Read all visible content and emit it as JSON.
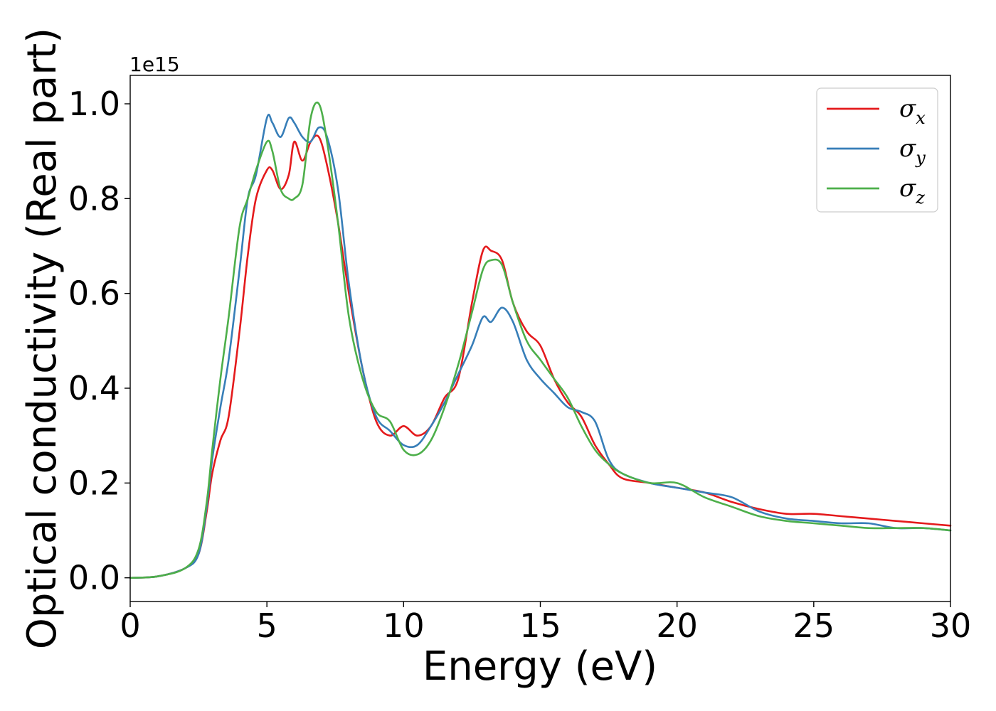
{
  "chart_data": {
    "type": "line",
    "title": "",
    "xlabel": "Energy (eV)",
    "ylabel": "Optical conductivity (Real part)",
    "y_offset_text": "1e15",
    "y_scale_factor": 1000000000000000.0,
    "xlim": [
      0,
      30
    ],
    "ylim": [
      -0.05,
      1.06
    ],
    "x_ticks": [
      0,
      5,
      10,
      15,
      20,
      25,
      30
    ],
    "x_tick_labels": [
      "0",
      "5",
      "10",
      "15",
      "20",
      "25",
      "30"
    ],
    "y_ticks": [
      0.0,
      0.2,
      0.4,
      0.6,
      0.8,
      1.0
    ],
    "y_tick_labels": [
      "0.0",
      "0.2",
      "0.4",
      "0.6",
      "0.8",
      "1.0"
    ],
    "grid": false,
    "legend_position": "top-right",
    "series": [
      {
        "name": "σx",
        "legend_symbol": "σ",
        "legend_subscript": "x",
        "color": "#e41a1c",
        "x": [
          0,
          1,
          2,
          2.5,
          2.8,
          3.0,
          3.3,
          3.6,
          4.0,
          4.3,
          4.6,
          5.0,
          5.2,
          5.5,
          5.8,
          6.0,
          6.3,
          6.6,
          6.9,
          7.2,
          7.6,
          8.0,
          8.5,
          9.0,
          9.5,
          10.0,
          10.5,
          11.0,
          11.5,
          12.0,
          12.5,
          12.9,
          13.2,
          13.6,
          14.0,
          14.5,
          15.0,
          15.5,
          16.0,
          16.5,
          17.0,
          17.5,
          18.0,
          19.0,
          20.0,
          21.0,
          22.0,
          23.0,
          24.0,
          25.0,
          26.0,
          27.0,
          28.0,
          29.0,
          30.0
        ],
        "y": [
          0.0,
          0.003,
          0.02,
          0.05,
          0.14,
          0.22,
          0.29,
          0.34,
          0.52,
          0.68,
          0.8,
          0.86,
          0.86,
          0.82,
          0.85,
          0.92,
          0.88,
          0.92,
          0.93,
          0.87,
          0.75,
          0.6,
          0.44,
          0.33,
          0.3,
          0.32,
          0.3,
          0.32,
          0.38,
          0.42,
          0.58,
          0.69,
          0.69,
          0.67,
          0.58,
          0.52,
          0.49,
          0.42,
          0.37,
          0.34,
          0.28,
          0.24,
          0.21,
          0.2,
          0.19,
          0.18,
          0.16,
          0.145,
          0.135,
          0.135,
          0.13,
          0.125,
          0.12,
          0.115,
          0.11
        ]
      },
      {
        "name": "σy",
        "legend_symbol": "σ",
        "legend_subscript": "y",
        "color": "#377eb8",
        "x": [
          0,
          1,
          2,
          2.5,
          2.8,
          3.0,
          3.3,
          3.6,
          4.0,
          4.3,
          4.6,
          5.0,
          5.2,
          5.5,
          5.8,
          6.0,
          6.3,
          6.6,
          6.9,
          7.2,
          7.6,
          8.0,
          8.5,
          9.0,
          9.5,
          10.0,
          10.5,
          11.0,
          11.5,
          12.0,
          12.5,
          12.9,
          13.2,
          13.6,
          14.0,
          14.5,
          15.0,
          15.5,
          16.0,
          16.5,
          17.0,
          17.5,
          18.0,
          19.0,
          20.0,
          21.0,
          22.0,
          23.0,
          24.0,
          25.0,
          26.0,
          27.0,
          28.0,
          29.0,
          30.0
        ],
        "y": [
          0.0,
          0.003,
          0.02,
          0.05,
          0.15,
          0.25,
          0.36,
          0.46,
          0.65,
          0.8,
          0.85,
          0.97,
          0.96,
          0.93,
          0.97,
          0.96,
          0.93,
          0.92,
          0.95,
          0.93,
          0.82,
          0.62,
          0.44,
          0.34,
          0.31,
          0.28,
          0.28,
          0.32,
          0.37,
          0.43,
          0.49,
          0.55,
          0.54,
          0.57,
          0.54,
          0.46,
          0.42,
          0.39,
          0.36,
          0.35,
          0.33,
          0.25,
          0.22,
          0.2,
          0.19,
          0.18,
          0.17,
          0.14,
          0.125,
          0.12,
          0.115,
          0.115,
          0.105,
          0.105,
          0.1
        ]
      },
      {
        "name": "σz",
        "legend_symbol": "σ",
        "legend_subscript": "z",
        "color": "#4daf4a",
        "x": [
          0,
          1,
          2,
          2.5,
          2.8,
          3.0,
          3.3,
          3.6,
          4.0,
          4.3,
          4.6,
          5.0,
          5.2,
          5.5,
          5.8,
          6.0,
          6.3,
          6.6,
          6.9,
          7.2,
          7.6,
          8.0,
          8.5,
          9.0,
          9.5,
          10.0,
          10.5,
          11.0,
          11.5,
          12.0,
          12.5,
          12.9,
          13.2,
          13.6,
          14.0,
          14.5,
          15.0,
          15.5,
          16.0,
          16.5,
          17.0,
          17.5,
          18.0,
          19.0,
          20.0,
          21.0,
          22.0,
          23.0,
          24.0,
          25.0,
          26.0,
          27.0,
          28.0,
          29.0,
          30.0
        ],
        "y": [
          0.0,
          0.003,
          0.02,
          0.06,
          0.16,
          0.27,
          0.42,
          0.55,
          0.74,
          0.8,
          0.86,
          0.92,
          0.9,
          0.82,
          0.8,
          0.8,
          0.83,
          0.97,
          1.0,
          0.92,
          0.75,
          0.55,
          0.42,
          0.35,
          0.33,
          0.27,
          0.26,
          0.29,
          0.36,
          0.45,
          0.56,
          0.65,
          0.67,
          0.66,
          0.58,
          0.5,
          0.46,
          0.42,
          0.38,
          0.32,
          0.27,
          0.24,
          0.22,
          0.2,
          0.2,
          0.17,
          0.15,
          0.13,
          0.12,
          0.115,
          0.11,
          0.105,
          0.105,
          0.105,
          0.1
        ]
      }
    ]
  }
}
